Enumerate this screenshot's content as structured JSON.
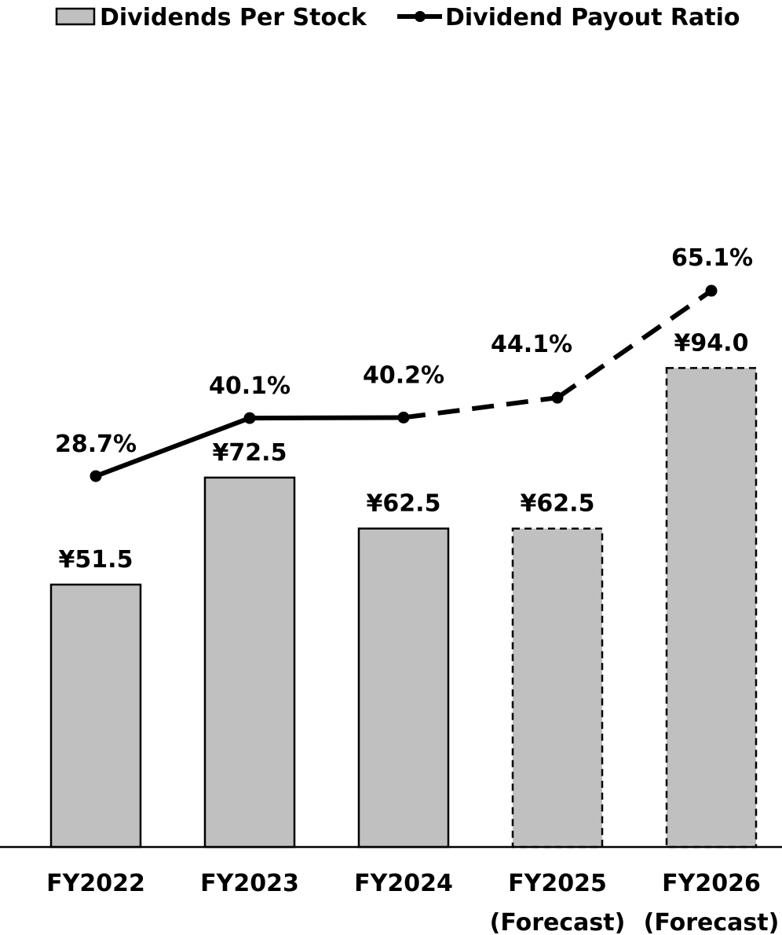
{
  "chart_data": {
    "type": "bar",
    "categories": [
      [
        "FY2022"
      ],
      [
        "FY2023"
      ],
      [
        "FY2024"
      ],
      [
        "FY2025",
        "(Forecast)"
      ],
      [
        "FY2026",
        "(Forecast)"
      ]
    ],
    "forecast": [
      false,
      false,
      false,
      true,
      true
    ],
    "series": [
      {
        "name": "Dividends Per Stock",
        "type": "bar",
        "values": [
          51.5,
          72.5,
          62.5,
          62.5,
          94.0
        ],
        "labels": [
          "¥51.5",
          "¥72.5",
          "¥62.5",
          "¥62.5",
          "¥94.0"
        ],
        "color": "#c0c0c0",
        "border_color": "#000000"
      },
      {
        "name": "Dividend Payout Ratio",
        "type": "line",
        "values": [
          28.7,
          40.1,
          40.2,
          44.1,
          65.1
        ],
        "labels": [
          "28.7%",
          "40.1%",
          "40.2%",
          "44.1%",
          "65.1%"
        ],
        "color": "#000000"
      }
    ],
    "legend": {
      "position": "top",
      "entries": [
        "Dividends Per Stock",
        "Dividend Payout Ratio"
      ]
    },
    "title": "",
    "xlabel": "",
    "ylabel": "",
    "ylim": [
      0,
      100
    ],
    "y2lim": [
      0,
      100
    ],
    "grid": false
  }
}
